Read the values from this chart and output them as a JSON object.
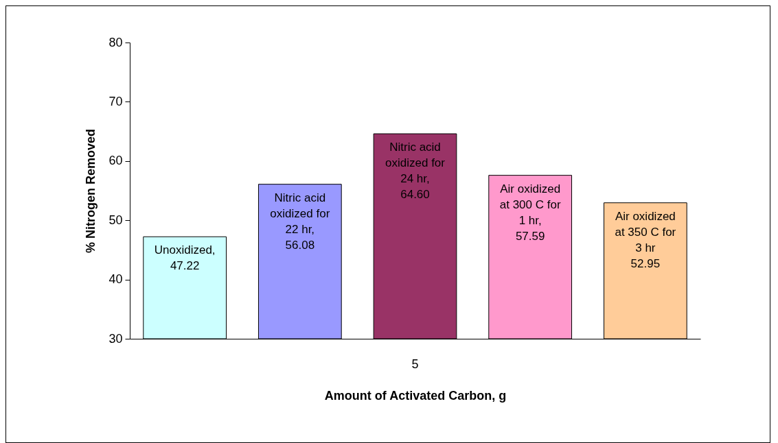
{
  "chart_data": {
    "type": "bar",
    "xlabel": "Amount of Activated Carbon, g",
    "ylabel": "% Nitrogen Removed",
    "categories": [
      "5"
    ],
    "ylim": [
      30,
      80
    ],
    "yticks": [
      30,
      40,
      50,
      60,
      70,
      80
    ],
    "grid": false,
    "series": [
      {
        "name": "Unoxidized,",
        "color": "#ccffff",
        "values": [
          47.22
        ],
        "value_labels": [
          "47.22"
        ]
      },
      {
        "name": "Nitric acid oxidized for 22 hr,",
        "color": "#9999ff",
        "values": [
          56.08
        ],
        "value_labels": [
          "56.08"
        ]
      },
      {
        "name": "Nitric acid oxidized for 24 hr,",
        "color": "#993366",
        "values": [
          64.6
        ],
        "value_labels": [
          "64.60"
        ]
      },
      {
        "name": "Air oxidized at 300 C for 1 hr,",
        "color": "#ff99cc",
        "values": [
          57.59
        ],
        "value_labels": [
          "57.59"
        ]
      },
      {
        "name": "Air oxidized at 350 C for 3 hr",
        "color": "#ffcc99",
        "values": [
          52.95
        ],
        "value_labels": [
          "52.95"
        ]
      }
    ]
  }
}
